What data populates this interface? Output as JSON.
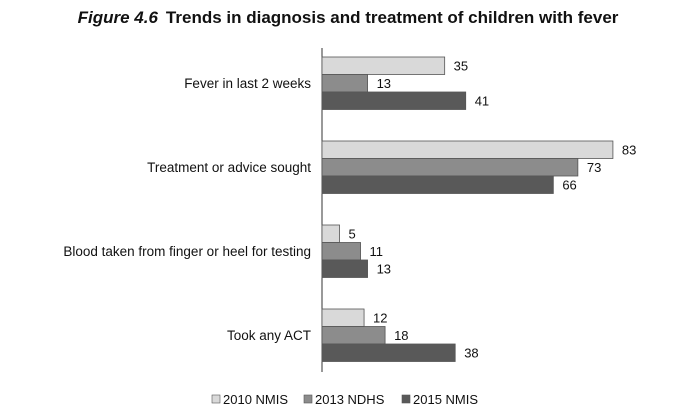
{
  "figure": {
    "number": "Figure 4.6",
    "title": "Trends in diagnosis and treatment of children with fever"
  },
  "chart_data": {
    "type": "bar",
    "orientation": "horizontal",
    "title": "Trends in diagnosis and treatment of children with fever",
    "categories": [
      "Fever in last 2 weeks",
      "Treatment or advice sought",
      "Blood taken from finger or heel for testing",
      "Took any ACT"
    ],
    "series": [
      {
        "name": "2010 NMIS",
        "color": "#d9d9d9",
        "values": [
          35,
          83,
          5,
          12
        ]
      },
      {
        "name": "2013 NDHS",
        "color": "#8c8c8c",
        "values": [
          13,
          73,
          11,
          18
        ]
      },
      {
        "name": "2015 NMIS",
        "color": "#595959",
        "values": [
          41,
          66,
          13,
          38
        ]
      }
    ],
    "xlim": [
      0,
      85
    ],
    "grid": false,
    "legend": "bottom"
  }
}
